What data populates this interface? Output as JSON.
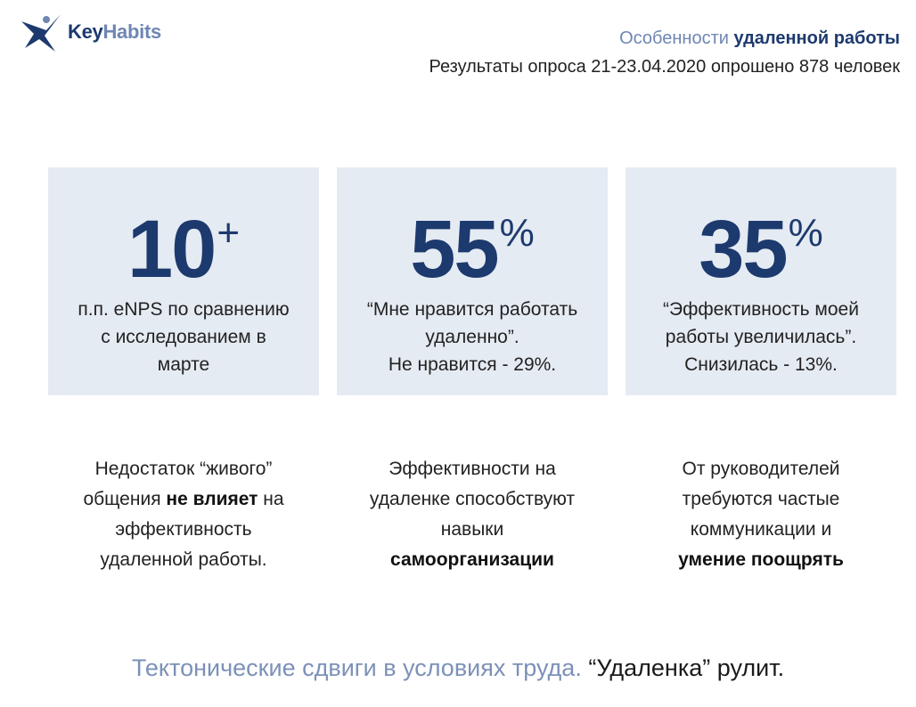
{
  "logo": {
    "key": "Key",
    "habits": "Habits"
  },
  "header": {
    "title_light": "Особенности ",
    "title_bold": "удаленной работы",
    "subtitle": "Результаты опроса 21-23.04.2020 опрошено 878 человек"
  },
  "cards": [
    {
      "number": "10",
      "suffix": "+",
      "lines": [
        "п.п. eNPS по сравнению",
        "с исследованием в",
        "марте"
      ]
    },
    {
      "number": "55",
      "suffix": "%",
      "lines": [
        "“Мне нравится работать",
        "удаленно”.",
        "Не нравится - 29%."
      ]
    },
    {
      "number": "35",
      "suffix": "%",
      "lines": [
        "“Эффективность моей",
        "работы увеличилась”.",
        "Снизилась - 13%."
      ]
    }
  ],
  "insights": [
    {
      "l1": "Недостаток “живого”",
      "l2_pre": "общения ",
      "l2_bold": "не влияет",
      "l2_post": " на",
      "l3": "эффективность",
      "l4": "удаленной работы."
    },
    {
      "l1": "Эффективности на",
      "l2": "удаленке способствуют",
      "l3": "навыки",
      "l4_bold": "самоорганизации"
    },
    {
      "l1": "От руководителей",
      "l2": "требуются частые",
      "l3": "коммуникации и",
      "l4_bold": "умение поощрять"
    }
  ],
  "footer": {
    "light": "Тектонические сдвиги в условиях труда. ",
    "dark": "“Удаленка” рулит."
  },
  "colors": {
    "navy": "#1d3a6e",
    "light_blue": "#6f86b3",
    "card_bg": "#e5ebf3"
  },
  "icons": {
    "logo_mark": "star-figure-check-icon"
  }
}
